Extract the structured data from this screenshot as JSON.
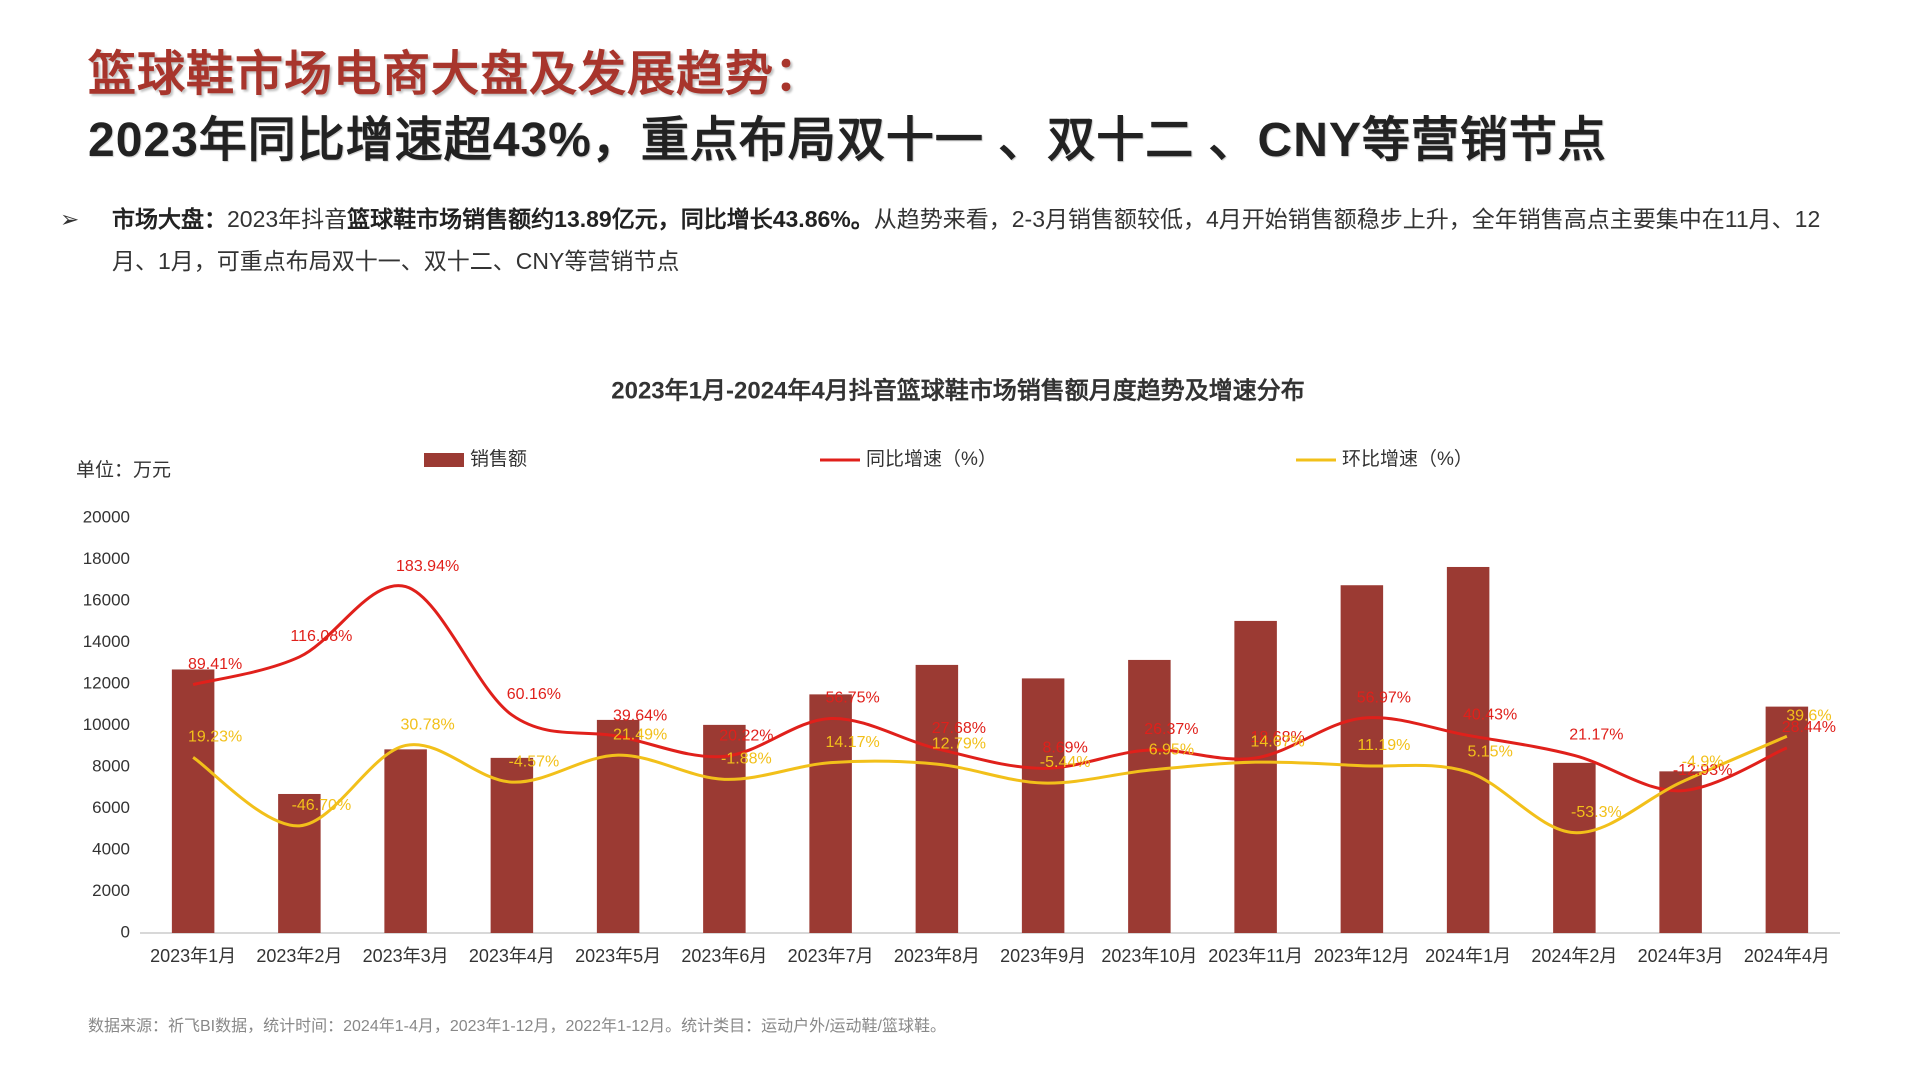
{
  "header": {
    "title": "篮球鞋市场电商大盘及发展趋势：",
    "subtitle": "2023年同比增速超43%，重点布局双十一 、双十二 、CNY等营销节点"
  },
  "summary": [
    {
      "text": "市场大盘：",
      "bold": true
    },
    {
      "text": "2023年抖音",
      "bold": false
    },
    {
      "text": "篮球鞋市场销售额约13.89亿元，同比增长43.86%。",
      "bold": true
    },
    {
      "text": "从趋势来看，2-3月销售额较低，4月开始销售额稳步上升，全年销售高点主要集中在11月、12月、1月，可重点布局双十一、双十二、CNY等营销节点",
      "bold": false
    }
  ],
  "chart_data": {
    "type": "bar",
    "title": "2023年1月-2024年4月抖音篮球鞋市场销售额月度趋势及增速分布",
    "y_label": "单位：万元",
    "categories": [
      "2023年1月",
      "2023年2月",
      "2023年3月",
      "2023年4月",
      "2023年5月",
      "2023年6月",
      "2023年7月",
      "2023年8月",
      "2023年9月",
      "2023年10月",
      "2023年11月",
      "2023年12月",
      "2024年1月",
      "2024年2月",
      "2024年3月",
      "2024年4月"
    ],
    "series": [
      {
        "name": "销售额",
        "type": "bar",
        "color": "#9b3a33",
        "values": [
          12700,
          6700,
          8850,
          8440,
          10270,
          10030,
          11500,
          12920,
          12270,
          13160,
          15040,
          16760,
          17640,
          8200,
          7790,
          10910
        ]
      },
      {
        "name": "同比增速（%）",
        "type": "line",
        "axis": "y2",
        "color": "#e0201b",
        "values": [
          89.41,
          116.08,
          183.94,
          60.16,
          39.64,
          20.22,
          56.75,
          27.68,
          8.69,
          26.37,
          18.68,
          56.97,
          40.43,
          21.17,
          -12.93,
          28.44
        ],
        "value_labels": [
          "89.41%",
          "116.08%",
          "183.94%",
          "60.16%",
          "39.64%",
          "20.22%",
          "56.75%",
          "27.68%",
          "8.69%",
          "26.37%",
          "18.68%",
          "56.97%",
          "40.43%",
          "21.17%",
          "-12.93%",
          "28.44%"
        ]
      },
      {
        "name": "环比增速（%）",
        "type": "line",
        "axis": "y2",
        "color": "#f2c01a",
        "values": [
          19.23,
          -46.7,
          30.78,
          -4.57,
          21.49,
          -1.88,
          14.17,
          12.79,
          -5.44,
          6.95,
          14.67,
          11.19,
          5.15,
          -53.3,
          -4.9,
          39.6
        ],
        "value_labels": [
          "19.23%",
          "-46.70%",
          "30.78%",
          "-4.57%",
          "21.49%",
          "-1.88%",
          "14.17%",
          "12.79%",
          "-5.44%",
          "6.95%",
          "14.67%",
          "11.19%",
          "5.15%",
          "-53.3%",
          "-4.9%",
          "39.6%"
        ]
      }
    ],
    "ylim": [
      0,
      20000
    ],
    "yticks": [
      0,
      2000,
      4000,
      6000,
      8000,
      10000,
      12000,
      14000,
      16000,
      18000,
      20000
    ],
    "y2lim": [
      -150,
      250
    ],
    "grid": false,
    "legend": "top",
    "source": "数据来源：祈飞BI数据，统计时间：2024年1-4月，2023年1-12月，2022年1-12月。统计类目：运动户外/运动鞋/篮球鞋。"
  }
}
